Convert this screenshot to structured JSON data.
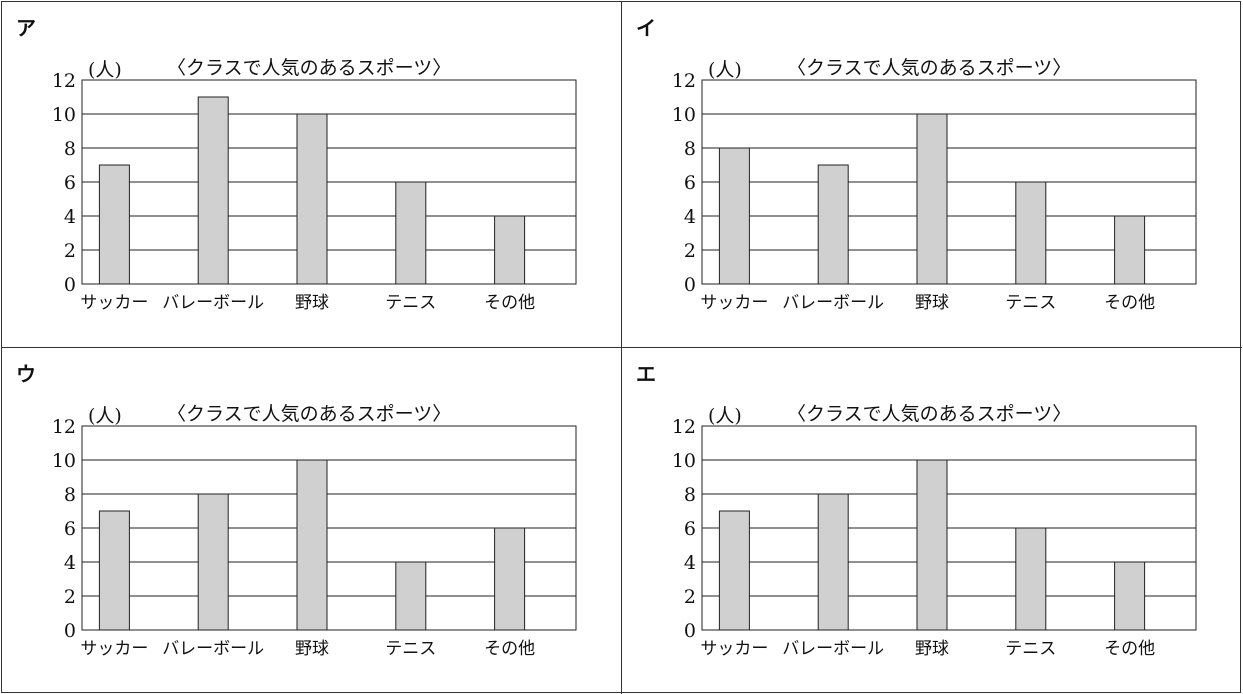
{
  "chart_data": [
    {
      "type": "bar",
      "label": "ア",
      "title": "〈クラスで人気のあるスポーツ〉",
      "ylabel": "(人)",
      "categories": [
        "サッカー",
        "バレーボール",
        "野球",
        "テニス",
        "その他"
      ],
      "values": [
        7,
        11,
        10,
        6,
        4
      ],
      "yticks": [
        0,
        2,
        4,
        6,
        8,
        10,
        12
      ],
      "ylim": [
        0,
        12
      ],
      "grid": true,
      "bar_color": "#d0d0d0"
    },
    {
      "type": "bar",
      "label": "イ",
      "title": "〈クラスで人気のあるスポーツ〉",
      "ylabel": "(人)",
      "categories": [
        "サッカー",
        "バレーボール",
        "野球",
        "テニス",
        "その他"
      ],
      "values": [
        8,
        7,
        10,
        6,
        4
      ],
      "yticks": [
        0,
        2,
        4,
        6,
        8,
        10,
        12
      ],
      "ylim": [
        0,
        12
      ],
      "grid": true,
      "bar_color": "#d0d0d0"
    },
    {
      "type": "bar",
      "label": "ウ",
      "title": "〈クラスで人気のあるスポーツ〉",
      "ylabel": "(人)",
      "categories": [
        "サッカー",
        "バレーボール",
        "野球",
        "テニス",
        "その他"
      ],
      "values": [
        7,
        8,
        10,
        4,
        6
      ],
      "yticks": [
        0,
        2,
        4,
        6,
        8,
        10,
        12
      ],
      "ylim": [
        0,
        12
      ],
      "grid": true,
      "bar_color": "#d0d0d0"
    },
    {
      "type": "bar",
      "label": "エ",
      "title": "〈クラスで人気のあるスポーツ〉",
      "ylabel": "(人)",
      "categories": [
        "サッカー",
        "バレーボール",
        "野球",
        "テニス",
        "その他"
      ],
      "values": [
        7,
        8,
        10,
        6,
        4
      ],
      "yticks": [
        0,
        2,
        4,
        6,
        8,
        10,
        12
      ],
      "ylim": [
        0,
        12
      ],
      "grid": true,
      "bar_color": "#d0d0d0"
    }
  ]
}
